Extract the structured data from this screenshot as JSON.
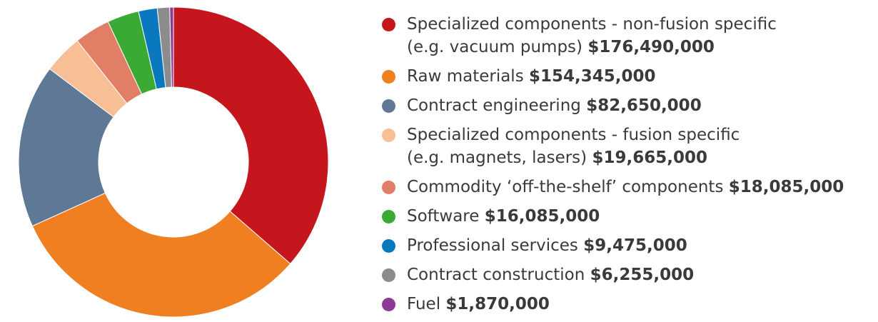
{
  "chart_data": {
    "type": "pie",
    "categories": [
      "Specialized components - non-fusion specific\n(e.g. vacuum pumps)",
      "Raw materials",
      "Contract engineering",
      "Specialized components - fusion specific\n(e.g. magnets, lasers)",
      "Commodity ‘off-the-shelf’ components",
      "Software",
      "Professional services",
      "Contract construction",
      "Fuel"
    ],
    "values": [
      176490000,
      154345000,
      82650000,
      19665000,
      18085000,
      16085000,
      9475000,
      6255000,
      1870000
    ],
    "value_labels": [
      "$176,490,000",
      "$154,345,000",
      "$82,650,000",
      "$19,665,000",
      "$18,085,000",
      "$16,085,000",
      "$9,475,000",
      "$6,255,000",
      "$1,870,000"
    ],
    "colors": [
      "#c4161c",
      "#f07f22",
      "#5f7896",
      "#f8bf96",
      "#e07f66",
      "#3aaa35",
      "#0a78bf",
      "#8c8c8c",
      "#8b3a96"
    ],
    "donut": true
  }
}
